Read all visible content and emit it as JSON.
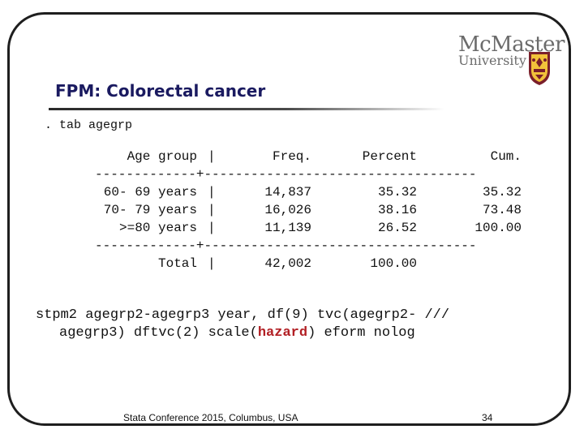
{
  "logo": {
    "line1": "McMaster",
    "line2": "University",
    "crest_color": "#7a1f2b",
    "icon": "university-crest-icon"
  },
  "title": "FPM: Colorectal cancer",
  "command": ". tab agegrp",
  "table": {
    "headers": {
      "label": "Age group",
      "freq": "Freq.",
      "percent": "Percent",
      "cum": "Cum."
    },
    "rows": [
      {
        "label": "60- 69 years",
        "freq": "14,837",
        "percent": "35.32",
        "cum": "35.32"
      },
      {
        "label": "70- 79 years",
        "freq": "16,026",
        "percent": "38.16",
        "cum": "73.48"
      },
      {
        "label": ">=80 years",
        "freq": "11,139",
        "percent": "26.52",
        "cum": "100.00"
      }
    ],
    "total": {
      "label": "Total",
      "freq": "42,002",
      "percent": "100.00"
    },
    "separator_left": "-------------",
    "separator_cross": "+",
    "separator_right": "-----------------------------------",
    "bar": "|"
  },
  "stpm": {
    "line1": "stpm2 agegrp2-agegrp3 year, df(9) tvc(agegrp2- ///",
    "line2_pre": "agegrp3) dftvc(2) scale(",
    "line2_hl": "hazard",
    "line2_post": ") eform nolog",
    "highlight_color": "#b21f24"
  },
  "footer": {
    "left": "Stata Conference 2015, Columbus, USA",
    "page": "34"
  }
}
